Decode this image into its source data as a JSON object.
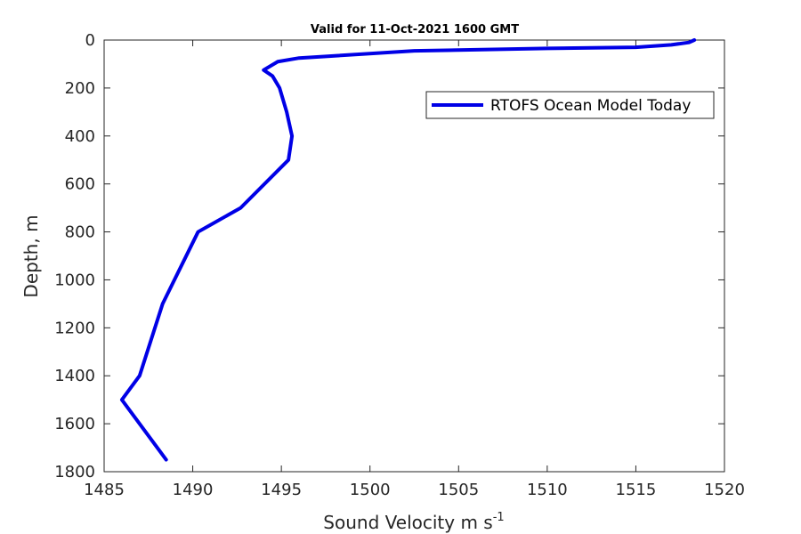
{
  "chart_data": {
    "type": "line",
    "title": "Valid for 11-Oct-2021 1600 GMT",
    "xlabel": "Sound Velocity m s",
    "xlabel_superscript": "-1",
    "ylabel": "Depth, m",
    "xlim": [
      1485,
      1520
    ],
    "ylim": [
      0,
      1800
    ],
    "y_reversed": true,
    "x_ticks": [
      1485,
      1490,
      1495,
      1500,
      1505,
      1510,
      1515,
      1520
    ],
    "y_ticks": [
      0,
      200,
      400,
      600,
      800,
      1000,
      1200,
      1400,
      1600,
      1800
    ],
    "grid": false,
    "legend_position": "top-right",
    "series": [
      {
        "name": "RTOFS Ocean Model Today",
        "color": "#0000e6",
        "x": [
          1518.3,
          1518.0,
          1517.0,
          1515.0,
          1510.0,
          1502.5,
          1496.0,
          1494.8,
          1494.0,
          1494.5,
          1494.9,
          1495.3,
          1495.6,
          1495.4,
          1492.7,
          1490.3,
          1488.3,
          1487.0,
          1486.0,
          1488.5
        ],
        "y": [
          0,
          10,
          20,
          30,
          35,
          45,
          75,
          90,
          125,
          150,
          200,
          300,
          400,
          500,
          700,
          800,
          1100,
          1400,
          1500,
          1750
        ]
      }
    ]
  }
}
